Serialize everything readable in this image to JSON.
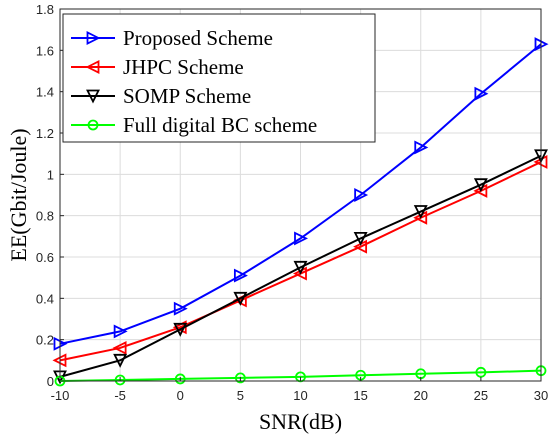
{
  "chart_data": {
    "type": "line",
    "xlabel": "SNR(dB)",
    "ylabel": "EE(Gbit/Joule)",
    "xlim": [
      -10,
      30
    ],
    "ylim": [
      0,
      1.8
    ],
    "xticks": [
      "-10",
      "-5",
      "0",
      "5",
      "10",
      "15",
      "20",
      "25",
      "30"
    ],
    "yticks": [
      "0",
      "0.2",
      "0.4",
      "0.6",
      "0.8",
      "1",
      "1.2",
      "1.4",
      "1.6",
      "1.8"
    ],
    "grid": true,
    "legend_position": "top-left",
    "x": [
      -10,
      -5,
      0,
      5,
      10,
      15,
      20,
      25,
      30
    ],
    "series": [
      {
        "name": "Proposed Scheme",
        "color": "#0000ff",
        "marker": "triangle-right",
        "values": [
          0.18,
          0.24,
          0.35,
          0.51,
          0.69,
          0.9,
          1.13,
          1.39,
          1.63
        ]
      },
      {
        "name": "JHPC Scheme",
        "color": "#ff0000",
        "marker": "triangle-left",
        "values": [
          0.1,
          0.16,
          0.26,
          0.39,
          0.52,
          0.65,
          0.79,
          0.92,
          1.06
        ]
      },
      {
        "name": "SOMP Scheme",
        "color": "#000000",
        "marker": "triangle-down",
        "values": [
          0.02,
          0.1,
          0.25,
          0.4,
          0.55,
          0.69,
          0.82,
          0.95,
          1.09
        ]
      },
      {
        "name": "Full digital BC scheme",
        "color": "#00ff00",
        "marker": "circle",
        "values": [
          0.0,
          0.005,
          0.01,
          0.015,
          0.02,
          0.028,
          0.035,
          0.042,
          0.05
        ]
      }
    ]
  }
}
